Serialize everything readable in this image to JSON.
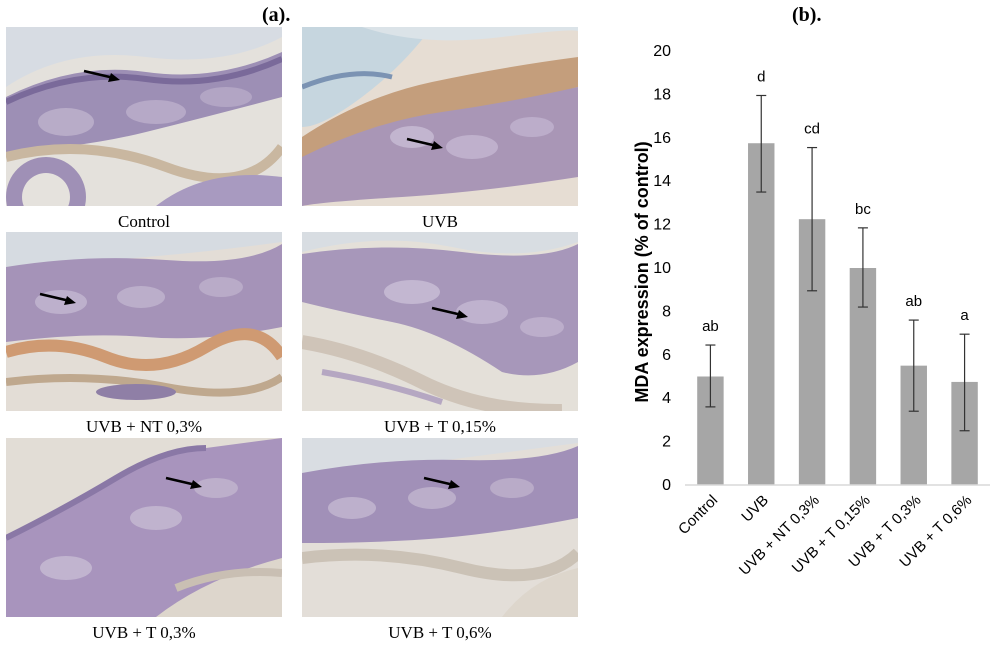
{
  "panel_a": {
    "label": "(a).",
    "images": [
      {
        "caption": "Control"
      },
      {
        "caption": "UVB"
      },
      {
        "caption": "UVB + NT 0,3%"
      },
      {
        "caption": "UVB + T 0,15%"
      },
      {
        "caption": "UVB + T 0,3%"
      },
      {
        "caption": "UVB + T 0,6%"
      }
    ]
  },
  "panel_b": {
    "label": "(b)."
  },
  "chart_data": {
    "type": "bar",
    "categories": [
      "Control",
      "UVB",
      "UVB + NT 0,3%",
      "UVB + T 0,15%",
      "UVB + T 0,3%",
      "UVB + T 0,6%"
    ],
    "values": [
      5.0,
      15.75,
      12.25,
      10.0,
      5.5,
      4.75
    ],
    "error_low": [
      3.6,
      13.5,
      8.95,
      8.2,
      3.4,
      2.5
    ],
    "error_high": [
      6.45,
      17.95,
      15.55,
      11.85,
      7.6,
      6.95
    ],
    "significance_labels": [
      "ab",
      "d",
      "cd",
      "bc",
      "ab",
      "a"
    ],
    "ylabel": "MDA expression (% of control)",
    "xlabel": "",
    "ylim": [
      0,
      20
    ],
    "yticks": [
      0,
      2,
      4,
      6,
      8,
      10,
      12,
      14,
      16,
      18,
      20
    ],
    "bar_color": "#a6a6a6",
    "grid": false
  }
}
